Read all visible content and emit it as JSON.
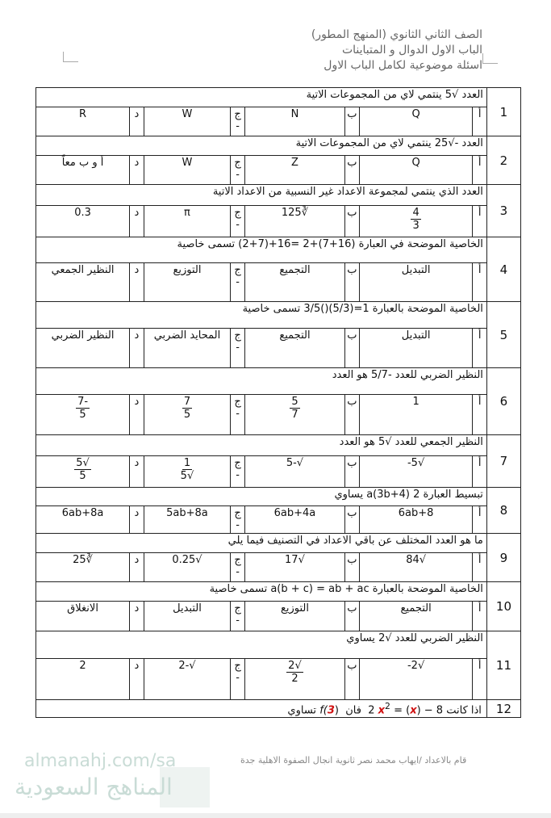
{
  "header": {
    "line1": "الصف الثاني الثانوي (المنهج المطور)",
    "line2": "الباب الاول الدوال و المتباينات",
    "line3": "اسئلة موضوعية لكامل الباب الاول"
  },
  "labels": [
    "أ",
    "ب",
    "ج -",
    "د"
  ],
  "questions": [
    {
      "num": "1",
      "text": "العدد √5 ينتمي لاي من المجموعات الاتية",
      "options": [
        {
          "t": "Q"
        },
        {
          "t": "N"
        },
        {
          "t": "W"
        },
        {
          "t": "R"
        }
      ]
    },
    {
      "num": "2",
      "text": "العدد -√25 ينتمي لاي من المجموعات الاتية",
      "options": [
        {
          "t": "Q"
        },
        {
          "t": "Z"
        },
        {
          "t": "W"
        },
        {
          "t": "أ و ب معاً"
        }
      ]
    },
    {
      "num": "3",
      "text": "العدد الذي ينتمي لمجموعة الاعداد غير النسبية  من الاعداد الاتية",
      "options": [
        {
          "n": "4",
          "d": "3"
        },
        {
          "t": "∛125"
        },
        {
          "t": "π"
        },
        {
          "t": "0.3"
        }
      ]
    },
    {
      "num": "4",
      "text": "الخاصية الموضحة في العبارة (16+7)+2 =16+(7+2)  تسمى خاصية",
      "options": [
        {
          "t": "التبديل"
        },
        {
          "t": "التجميع"
        },
        {
          "t": "التوزيع"
        },
        {
          "t": "النظير الجمعي"
        }
      ]
    },
    {
      "num": "5",
      "text": "الخاصية الموضحة بالعبارة  1=(5/3)()3/5  تسمى خاصية",
      "options": [
        {
          "t": "التبديل"
        },
        {
          "t": "التجميع"
        },
        {
          "t": "المحايد الضربي"
        },
        {
          "t": "النظير الضربي"
        }
      ]
    },
    {
      "num": "6",
      "text": "النظير الضربي للعدد  -5/7  هو العدد",
      "options": [
        {
          "t": "1"
        },
        {
          "n": "5",
          "d": "7"
        },
        {
          "n": "7",
          "d": "5"
        },
        {
          "n": "-7",
          "d": "5"
        }
      ]
    },
    {
      "num": "7",
      "text": "النظير الجمعي للعدد √5  هو العدد",
      "options": [
        {
          "t": "√5-"
        },
        {
          "t": "√-5"
        },
        {
          "n": "1",
          "d": "√5"
        },
        {
          "n": "√5",
          "d": "5"
        }
      ]
    },
    {
      "num": "8",
      "text": "تبسيط العبارة  2 a(3b+4)  يساوي",
      "options": [
        {
          "t": "6ab+8"
        },
        {
          "t": "6ab+4a"
        },
        {
          "t": "5ab+8a"
        },
        {
          "t": "6ab+8a"
        }
      ]
    },
    {
      "num": "9",
      "text": "ما هو العدد المختلف عن باقي الاعداد في التصنيف فيما يلي",
      "options": [
        {
          "t": "√84"
        },
        {
          "t": "√17"
        },
        {
          "t": "√0.25"
        },
        {
          "t": "∛25"
        }
      ]
    },
    {
      "num": "10",
      "text": "الخاصية الموضحة بالعبارة  a(b + c) = ab + ac  تسمى خاصية",
      "options": [
        {
          "t": "التجميع"
        },
        {
          "t": "التوزيع"
        },
        {
          "t": "التبديل"
        },
        {
          "t": "الانغلاق"
        }
      ]
    },
    {
      "num": "11",
      "text": "النظير الضربي للعدد √2 يساوي",
      "options": [
        {
          "t": "√2-"
        },
        {
          "n": "√2",
          "d": "2"
        },
        {
          "t": "√-2"
        },
        {
          "t": "2"
        }
      ]
    }
  ],
  "q12": {
    "num": "12",
    "pre": "اذا كانت",
    "eq1": "2",
    "x": "x",
    "eq2": "= (",
    "eq3": ") − 8",
    "mid": "فان",
    "f3a": "f(",
    "three": "3",
    "f3b": ")",
    "post": "تساوي",
    "fx": "f("
  },
  "footer": {
    "credit": "قام بالاعداد /ايهاب محمد نصر ثانوية انجال الصفوة الاهلية جدة",
    "watermark_url": "almanahj.com/sa",
    "watermark_ar": "المناهج السعودية"
  }
}
